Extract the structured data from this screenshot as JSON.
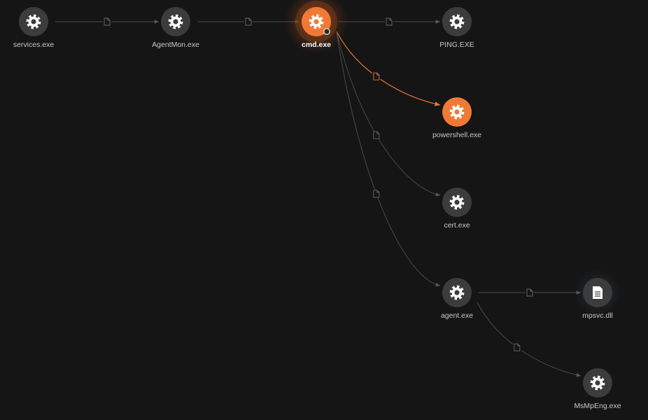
{
  "graph": {
    "colors": {
      "background": "#151515",
      "node_default": "#3c3c3c",
      "node_highlight": "#f07a35",
      "edge_default": "#4a4a4a",
      "edge_highlight": "#e8773a",
      "label": "#c8c8c8",
      "label_selected": "#ffffff"
    },
    "nodes": [
      {
        "id": "services",
        "label": "services.exe",
        "icon": "gear-icon",
        "highlight": false,
        "selected": false
      },
      {
        "id": "agentmon",
        "label": "AgentMon.exe",
        "icon": "gear-icon",
        "highlight": false,
        "selected": false
      },
      {
        "id": "cmd",
        "label": "cmd.exe",
        "icon": "gear-icon",
        "highlight": true,
        "selected": true
      },
      {
        "id": "ping",
        "label": "PING.EXE",
        "icon": "gear-icon",
        "highlight": false,
        "selected": false
      },
      {
        "id": "powershell",
        "label": "powershell.exe",
        "icon": "gear-icon",
        "highlight": true,
        "selected": false
      },
      {
        "id": "cert",
        "label": "cert.exe",
        "icon": "gear-icon",
        "highlight": false,
        "selected": false
      },
      {
        "id": "agent",
        "label": "agent.exe",
        "icon": "gear-icon",
        "highlight": false,
        "selected": false
      },
      {
        "id": "mpsvc",
        "label": "mpsvc.dll",
        "icon": "file-icon",
        "highlight": false,
        "selected": false
      },
      {
        "id": "msmpeng",
        "label": "MsMpEng.exe",
        "icon": "gear-icon",
        "highlight": false,
        "selected": false
      }
    ],
    "edges": [
      {
        "from": "services",
        "to": "agentmon",
        "highlight": false
      },
      {
        "from": "agentmon",
        "to": "cmd",
        "highlight": false
      },
      {
        "from": "cmd",
        "to": "ping",
        "highlight": false
      },
      {
        "from": "cmd",
        "to": "powershell",
        "highlight": true
      },
      {
        "from": "cmd",
        "to": "cert",
        "highlight": false
      },
      {
        "from": "cmd",
        "to": "agent",
        "highlight": false
      },
      {
        "from": "agent",
        "to": "mpsvc",
        "highlight": false
      },
      {
        "from": "agent",
        "to": "msmpeng",
        "highlight": false
      }
    ]
  }
}
